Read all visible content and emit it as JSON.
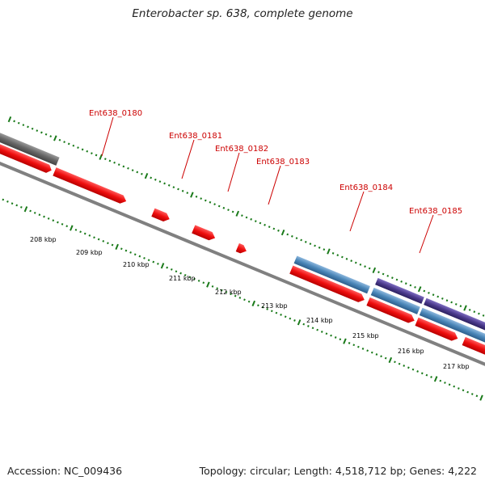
{
  "title": "Enterobacter sp. 638, complete genome",
  "footer": {
    "accession": "Accession: NC_009436",
    "summary": "Topology: circular; Length: 4,518,712 bp; Genes: 4,222"
  },
  "colors": {
    "cds": "#ee1111",
    "backbone": "#777777",
    "tick": "#1a7a1a",
    "label": "#cc0000",
    "blue_feature": "#4a86b8",
    "purple_feature": "#4b3a8c",
    "gray_feature": "#666666"
  },
  "scale": {
    "kbp_labels": [
      "208 kbp",
      "209 kbp",
      "210 kbp",
      "211 kbp",
      "212 kbp",
      "213 kbp",
      "214 kbp",
      "215 kbp",
      "216 kbp",
      "217 kbp"
    ]
  },
  "genes": [
    {
      "name": "Ent638_0180",
      "label": "Ent638_0180"
    },
    {
      "name": "Ent638_0181",
      "label": "Ent638_0181"
    },
    {
      "name": "Ent638_0182",
      "label": "Ent638_0182"
    },
    {
      "name": "Ent638_0183",
      "label": "Ent638_0183"
    },
    {
      "name": "Ent638_0184",
      "label": "Ent638_0184"
    },
    {
      "name": "Ent638_0185",
      "label": "Ent638_0185"
    }
  ]
}
